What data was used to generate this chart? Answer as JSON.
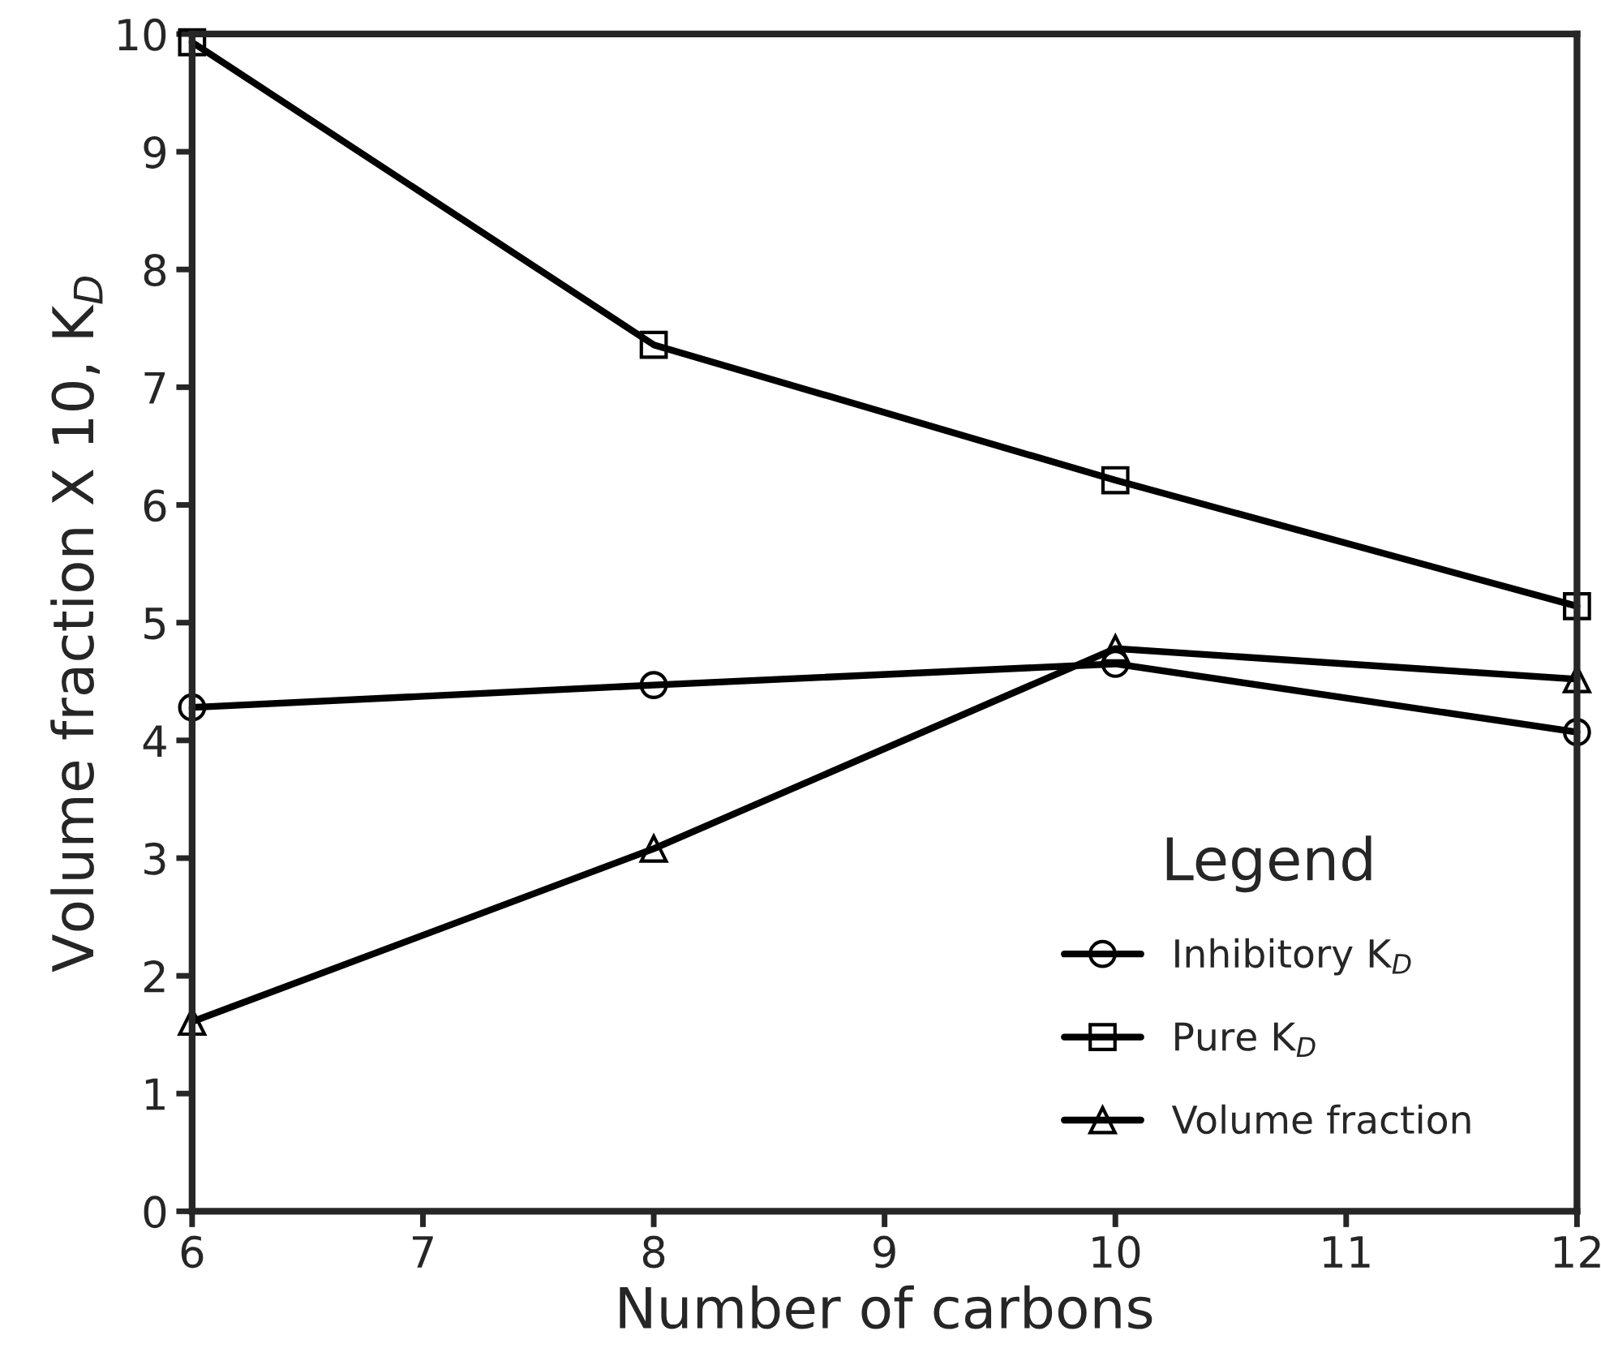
{
  "chart_data": {
    "type": "line",
    "xlabel": "Number of carbons",
    "ylabel": "Volume fraction X 10, K$_{D}$",
    "legend_title": "Legend",
    "x": [
      6,
      8,
      10,
      12
    ],
    "series": [
      {
        "name": "Inhibitory K$_{D}$",
        "color": "#000000",
        "marker": "circle",
        "values": [
          4.28,
          4.47,
          4.65,
          4.07
        ]
      },
      {
        "name": "Pure K$_{D}$",
        "color": "#000000",
        "marker": "square",
        "values": [
          9.93,
          7.36,
          6.21,
          5.14
        ]
      },
      {
        "name": "Volume fraction",
        "color": "#000000",
        "marker": "triangle",
        "values": [
          1.61,
          3.08,
          4.78,
          4.52
        ]
      }
    ],
    "xlim": [
      6,
      12
    ],
    "xticks": [
      6,
      7,
      8,
      9,
      10,
      11,
      12
    ],
    "ylim": [
      0,
      10
    ],
    "yticks": [
      0,
      1,
      2,
      3,
      4,
      5,
      6,
      7,
      8,
      9,
      10
    ],
    "grid": false,
    "legend": "bottom right",
    "line_style": "solid"
  }
}
